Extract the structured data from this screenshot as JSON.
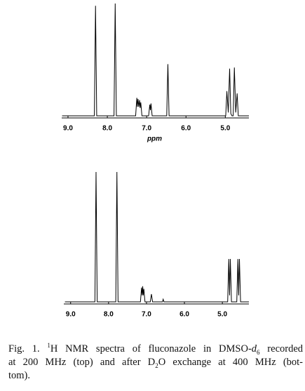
{
  "chart_data": [
    {
      "type": "line",
      "color": "#000000",
      "xlabel": "ppm",
      "xlim": [
        9.16,
        4.4
      ],
      "ylim": [
        0,
        100
      ],
      "xticks": [
        {
          "value": 9,
          "label": "9.0"
        },
        {
          "value": 8,
          "label": "8.0"
        },
        {
          "value": 7,
          "label": "7.0"
        },
        {
          "value": 6,
          "label": "6.0"
        },
        {
          "value": 5,
          "label": "5.0"
        }
      ],
      "x": [
        9.15,
        8.33,
        8.3,
        8.27,
        7.83,
        7.8,
        7.77,
        7.28,
        7.25,
        7.235,
        7.22,
        7.2,
        7.18,
        7.165,
        7.15,
        7.12,
        6.95,
        6.92,
        6.905,
        6.89,
        6.86,
        6.49,
        6.46,
        6.43,
        4.99,
        4.96,
        4.925,
        4.89,
        4.86,
        4.83,
        4.8,
        4.77,
        4.735,
        4.7,
        4.67,
        4.4
      ],
      "values": [
        0,
        0,
        98,
        0,
        0,
        100,
        0,
        0,
        16,
        8,
        15,
        8,
        14,
        7,
        12,
        0,
        0,
        10,
        5,
        11,
        0,
        0,
        46,
        0,
        0,
        22,
        3,
        42,
        2,
        0,
        0,
        43,
        3,
        20,
        0,
        0
      ]
    },
    {
      "type": "line",
      "color": "#000000",
      "xlim": [
        9.18,
        4.3
      ],
      "ylim": [
        0,
        100
      ],
      "xticks": [
        {
          "value": 9,
          "label": "9.0"
        },
        {
          "value": 8,
          "label": "8.0"
        },
        {
          "value": 7,
          "label": "7.0"
        },
        {
          "value": 6,
          "label": "6.0"
        },
        {
          "value": 5,
          "label": "5.0"
        }
      ],
      "x": [
        9.15,
        8.36,
        8.33,
        8.3,
        7.81,
        7.78,
        7.75,
        7.16,
        7.13,
        7.115,
        7.1,
        7.085,
        7.07,
        7.04,
        6.9,
        6.87,
        6.84,
        6.58,
        6.56,
        6.54,
        4.86,
        4.83,
        4.81,
        4.79,
        4.76,
        4.62,
        4.59,
        4.57,
        4.55,
        4.52,
        4.3
      ],
      "values": [
        0,
        0,
        100,
        0,
        0,
        100,
        0,
        0,
        11,
        5,
        12,
        5,
        10,
        0,
        0,
        6,
        0,
        0,
        2,
        0,
        0,
        33,
        5,
        33,
        0,
        0,
        33,
        5,
        33,
        0,
        0
      ]
    }
  ],
  "caption": [
    [
      "Fig. 1. ",
      "1",
      "H NMR spectra of fluconazole in DMSO-",
      "d",
      "6",
      " recorded"
    ],
    [
      "at 200 MHz (top) and after D",
      "2",
      "O exchange at 400 MHz (bot-"
    ],
    [
      "tom)."
    ]
  ]
}
